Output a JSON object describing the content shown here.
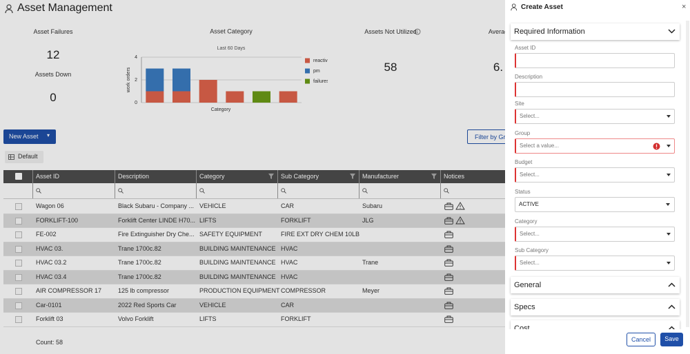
{
  "header": {
    "title": "Asset Management"
  },
  "kpis": [
    {
      "label": "Asset Failures",
      "value": 12
    },
    {
      "label": "Assets Down",
      "value": 0
    },
    {
      "label": "Assets Not Utilized",
      "value": 58
    },
    {
      "label": "Averag",
      "value": "6."
    }
  ],
  "chart_data": {
    "type": "bar",
    "stacked": true,
    "title": "Asset Category",
    "subtitle": "Last 60 Days",
    "x_label": "Category",
    "y_label": "work orders",
    "categories": [
      null,
      null,
      null,
      null,
      null,
      null
    ],
    "series": [
      {
        "name": "reactive",
        "color": "#e0634c",
        "values": [
          1,
          1,
          2,
          1,
          0,
          1
        ]
      },
      {
        "name": "pm",
        "color": "#3b7cc2",
        "values": [
          2,
          2,
          0,
          0,
          0,
          0
        ]
      },
      {
        "name": "failures",
        "color": "#6b9b16",
        "values": [
          0,
          0,
          0,
          0,
          1,
          0
        ]
      }
    ],
    "ylim": [
      0,
      4
    ],
    "yticks": [
      0,
      2,
      4
    ],
    "grid": true,
    "legend": "right"
  },
  "toolbar": {
    "new_button": "New Asset",
    "filter_button": "Filter by Gr",
    "view": "Default"
  },
  "table": {
    "columns": [
      "Asset ID",
      "Description",
      "Category",
      "Sub Category",
      "Manufacturer",
      "Notices"
    ],
    "rows": [
      [
        "Wagon 06",
        "Black Subaru - Company ...",
        "VEHICLE",
        "CAR",
        "Subaru"
      ],
      [
        "FORKLIFT-100",
        "Forklift Center LINDE H70...",
        "LIFTS",
        "FORKLIFT",
        "JLG"
      ],
      [
        "FE-002",
        "Fire Extinguisher Dry Che...",
        "SAFETY EQUIPMENT",
        "FIRE EXT DRY CHEM 10LB",
        null
      ],
      [
        "HVAC 03.",
        "Trane 1700c.82",
        "BUILDING MAINTENANCE",
        "HVAC",
        null
      ],
      [
        "HVAC 03.2",
        "Trane 1700c.82",
        "BUILDING MAINTENANCE",
        "HVAC",
        "Trane"
      ],
      [
        "HVAC 03.4",
        "Trane 1700c.82",
        "BUILDING MAINTENANCE",
        "HVAC",
        null
      ],
      [
        "AIR COMPRESSOR 17",
        "125 lb compressor",
        "PRODUCTION EQUIPMENT",
        "COMPRESSOR",
        "Meyer"
      ],
      [
        "Car-0101",
        "2022 Red Sports Car",
        "VEHICLE",
        "CAR",
        null
      ],
      [
        "Forklift 03",
        "Volvo Forklift",
        "LIFTS",
        "FORKLIFT",
        null
      ]
    ],
    "count": "Count: 58"
  },
  "panel": {
    "title": "Create Asset",
    "section": "Required Information",
    "fields": [
      {
        "label": "Asset ID",
        "required": true
      },
      {
        "label": "Description",
        "required": true
      },
      {
        "label": "Site",
        "placeholder": "Select...",
        "required": true
      },
      {
        "label": "Group",
        "placeholder": "Select a value...",
        "required": true,
        "error": true
      },
      {
        "label": "Budget",
        "placeholder": "Select...",
        "required": true
      },
      {
        "label": "Status",
        "value": "ACTIVE",
        "required": false
      },
      {
        "label": "Category",
        "placeholder": "Select...",
        "required": true
      },
      {
        "label": "Sub Category",
        "placeholder": "Select...",
        "required": true
      }
    ],
    "sections": [
      "General",
      "Specs",
      "Cost"
    ],
    "cancel": "Cancel",
    "save": "Save"
  }
}
